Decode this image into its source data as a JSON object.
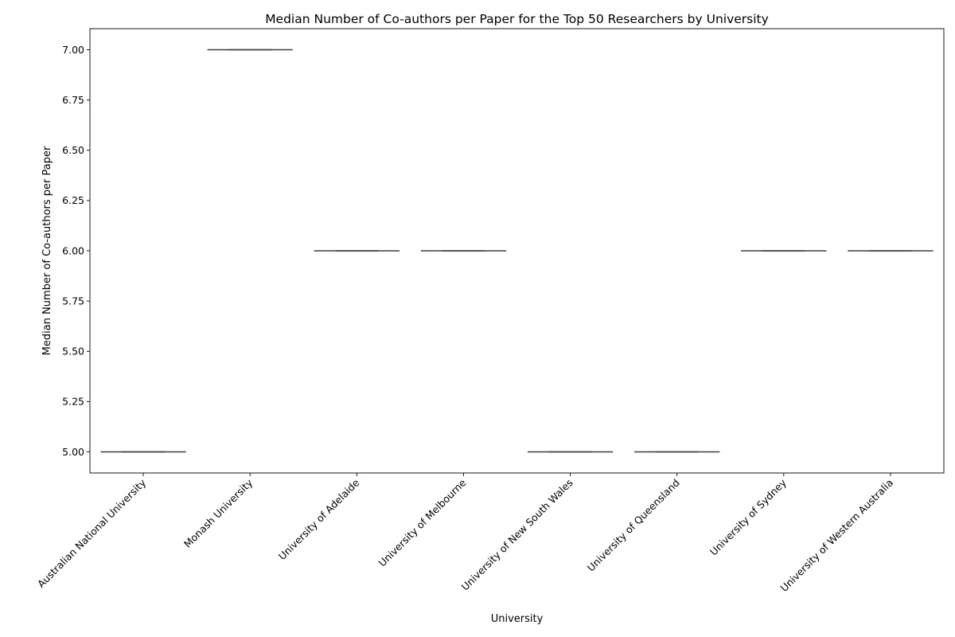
{
  "chart_data": {
    "type": "box",
    "title": "Median Number of Co-authors per Paper for the Top 50 Researchers by University",
    "xlabel": "University",
    "ylabel": "Median Number of Co-authors per Paper",
    "categories": [
      "Australian National University",
      "Monash University",
      "University of Adelaide",
      "University of Melbourne",
      "University of New South Wales",
      "University of Queensland",
      "University of Sydney",
      "University of Western Australia"
    ],
    "values": [
      5,
      7,
      6,
      6,
      5,
      5,
      6,
      6
    ],
    "ylim": [
      4.895,
      7.105
    ],
    "yticks": [
      5.0,
      5.25,
      5.5,
      5.75,
      6.0,
      6.25,
      6.5,
      6.75,
      7.0
    ],
    "ytick_labels": [
      "5.00",
      "5.25",
      "5.50",
      "5.75",
      "6.00",
      "6.25",
      "6.50",
      "6.75",
      "7.00"
    ],
    "grid": false,
    "legend": "none",
    "colors": {
      "box_line": "#3d3d3d",
      "axis": "#000000",
      "background": "#ffffff"
    }
  }
}
